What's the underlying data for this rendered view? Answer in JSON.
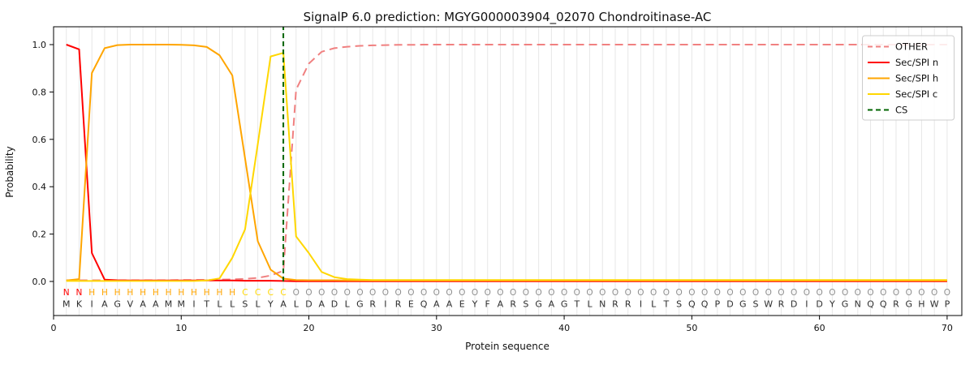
{
  "chart_data": {
    "type": "line",
    "title": "SignalP 6.0 prediction: MGYG000003904_02070 Chondroitinase-AC",
    "xlabel": "Protein sequence",
    "ylabel": "Probability",
    "x_ticks": [
      0,
      10,
      20,
      30,
      40,
      50,
      60,
      70
    ],
    "y_ticks": [
      0.0,
      0.2,
      0.4,
      0.6,
      0.8,
      1.0
    ],
    "xlim": [
      0,
      71.1
    ],
    "ylim": [
      -0.144,
      1.075
    ],
    "grid": "vertical line at every residue position",
    "legend_position": "upper right",
    "sequence": "MKIAGVAAMMITLLSLYALDADLGRIREQAAEYFARSGAGTLNRRILTSQQPDGSWRDIDYGNQQRGHWP",
    "residue_color": "#2e2e2e",
    "regions": [
      {
        "label": "N",
        "color": "#ff0000",
        "start": 1,
        "end": 2
      },
      {
        "label": "H",
        "color": "#ffa500",
        "start": 3,
        "end": 14
      },
      {
        "label": "C",
        "color": "#ffd700",
        "start": 15,
        "end": 18
      },
      {
        "label": "O",
        "color": "#8f8f8f",
        "start": 19,
        "end": 70
      }
    ],
    "cs": {
      "name": "CS",
      "color": "#006400",
      "dash": "6 4",
      "position": 18
    },
    "series": [
      {
        "name": "OTHER",
        "color": "#f08080",
        "dash": "10 6",
        "values": [
          0.005,
          0.005,
          0.005,
          0.005,
          0.005,
          0.005,
          0.005,
          0.005,
          0.005,
          0.006,
          0.006,
          0.007,
          0.008,
          0.009,
          0.011,
          0.015,
          0.025,
          0.045,
          0.81,
          0.92,
          0.97,
          0.985,
          0.991,
          0.995,
          0.997,
          0.998,
          0.999,
          0.999,
          1.0,
          1.0,
          1.0,
          1.0,
          1.0,
          1.0,
          1.0,
          1.0,
          1.0,
          1.0,
          1.0,
          1.0,
          1.0,
          1.0,
          1.0,
          1.0,
          1.0,
          1.0,
          1.0,
          1.0,
          1.0,
          1.0,
          1.0,
          1.0,
          1.0,
          1.0,
          1.0,
          1.0,
          1.0,
          1.0,
          1.0,
          1.0,
          1.0,
          1.0,
          1.0,
          1.0,
          1.0,
          1.0,
          1.0,
          1.0,
          1.0,
          1.0
        ]
      },
      {
        "name": "Sec/SPI n",
        "color": "#ff0000",
        "dash": null,
        "values": [
          1.0,
          0.98,
          0.12,
          0.008,
          0.005,
          0.004,
          0.004,
          0.004,
          0.004,
          0.004,
          0.004,
          0.004,
          0.004,
          0.004,
          0.003,
          0.003,
          0.003,
          0.002,
          0.001,
          0.001,
          0.001,
          0.001,
          0.001,
          0.001,
          0.001,
          0.001,
          0.001,
          0.001,
          0.001,
          0.001,
          0.001,
          0.001,
          0.001,
          0.001,
          0.001,
          0.001,
          0.001,
          0.001,
          0.001,
          0.001,
          0.001,
          0.001,
          0.001,
          0.001,
          0.001,
          0.001,
          0.001,
          0.001,
          0.001,
          0.001,
          0.001,
          0.001,
          0.001,
          0.001,
          0.001,
          0.001,
          0.001,
          0.001,
          0.001,
          0.001,
          0.001,
          0.001,
          0.001,
          0.001,
          0.001,
          0.001,
          0.001,
          0.001,
          0.001,
          0.001
        ]
      },
      {
        "name": "Sec/SPI h",
        "color": "#ffa500",
        "dash": null,
        "values": [
          0.004,
          0.01,
          0.88,
          0.985,
          0.998,
          1.0,
          1.0,
          1.0,
          1.0,
          0.999,
          0.997,
          0.99,
          0.955,
          0.87,
          0.52,
          0.17,
          0.05,
          0.012,
          0.006,
          0.005,
          0.005,
          0.005,
          0.004,
          0.004,
          0.004,
          0.004,
          0.004,
          0.004,
          0.004,
          0.004,
          0.004,
          0.004,
          0.004,
          0.004,
          0.004,
          0.004,
          0.004,
          0.004,
          0.004,
          0.004,
          0.004,
          0.004,
          0.004,
          0.004,
          0.004,
          0.004,
          0.004,
          0.004,
          0.004,
          0.004,
          0.004,
          0.004,
          0.004,
          0.004,
          0.004,
          0.004,
          0.004,
          0.004,
          0.004,
          0.004,
          0.004,
          0.004,
          0.004,
          0.004,
          0.004,
          0.004,
          0.004,
          0.004,
          0.004,
          0.004
        ]
      },
      {
        "name": "Sec/SPI c",
        "color": "#ffd700",
        "dash": null,
        "values": [
          0.002,
          0.002,
          0.002,
          0.002,
          0.002,
          0.002,
          0.002,
          0.002,
          0.002,
          0.002,
          0.002,
          0.004,
          0.013,
          0.1,
          0.22,
          0.58,
          0.95,
          0.965,
          0.19,
          0.12,
          0.04,
          0.018,
          0.01,
          0.008,
          0.006,
          0.006,
          0.006,
          0.006,
          0.006,
          0.006,
          0.006,
          0.006,
          0.006,
          0.006,
          0.006,
          0.006,
          0.006,
          0.006,
          0.006,
          0.006,
          0.006,
          0.006,
          0.006,
          0.006,
          0.006,
          0.006,
          0.006,
          0.006,
          0.006,
          0.006,
          0.006,
          0.006,
          0.006,
          0.006,
          0.006,
          0.006,
          0.006,
          0.006,
          0.006,
          0.006,
          0.006,
          0.006,
          0.006,
          0.006,
          0.006,
          0.006,
          0.006,
          0.006,
          0.006,
          0.006
        ]
      }
    ]
  }
}
